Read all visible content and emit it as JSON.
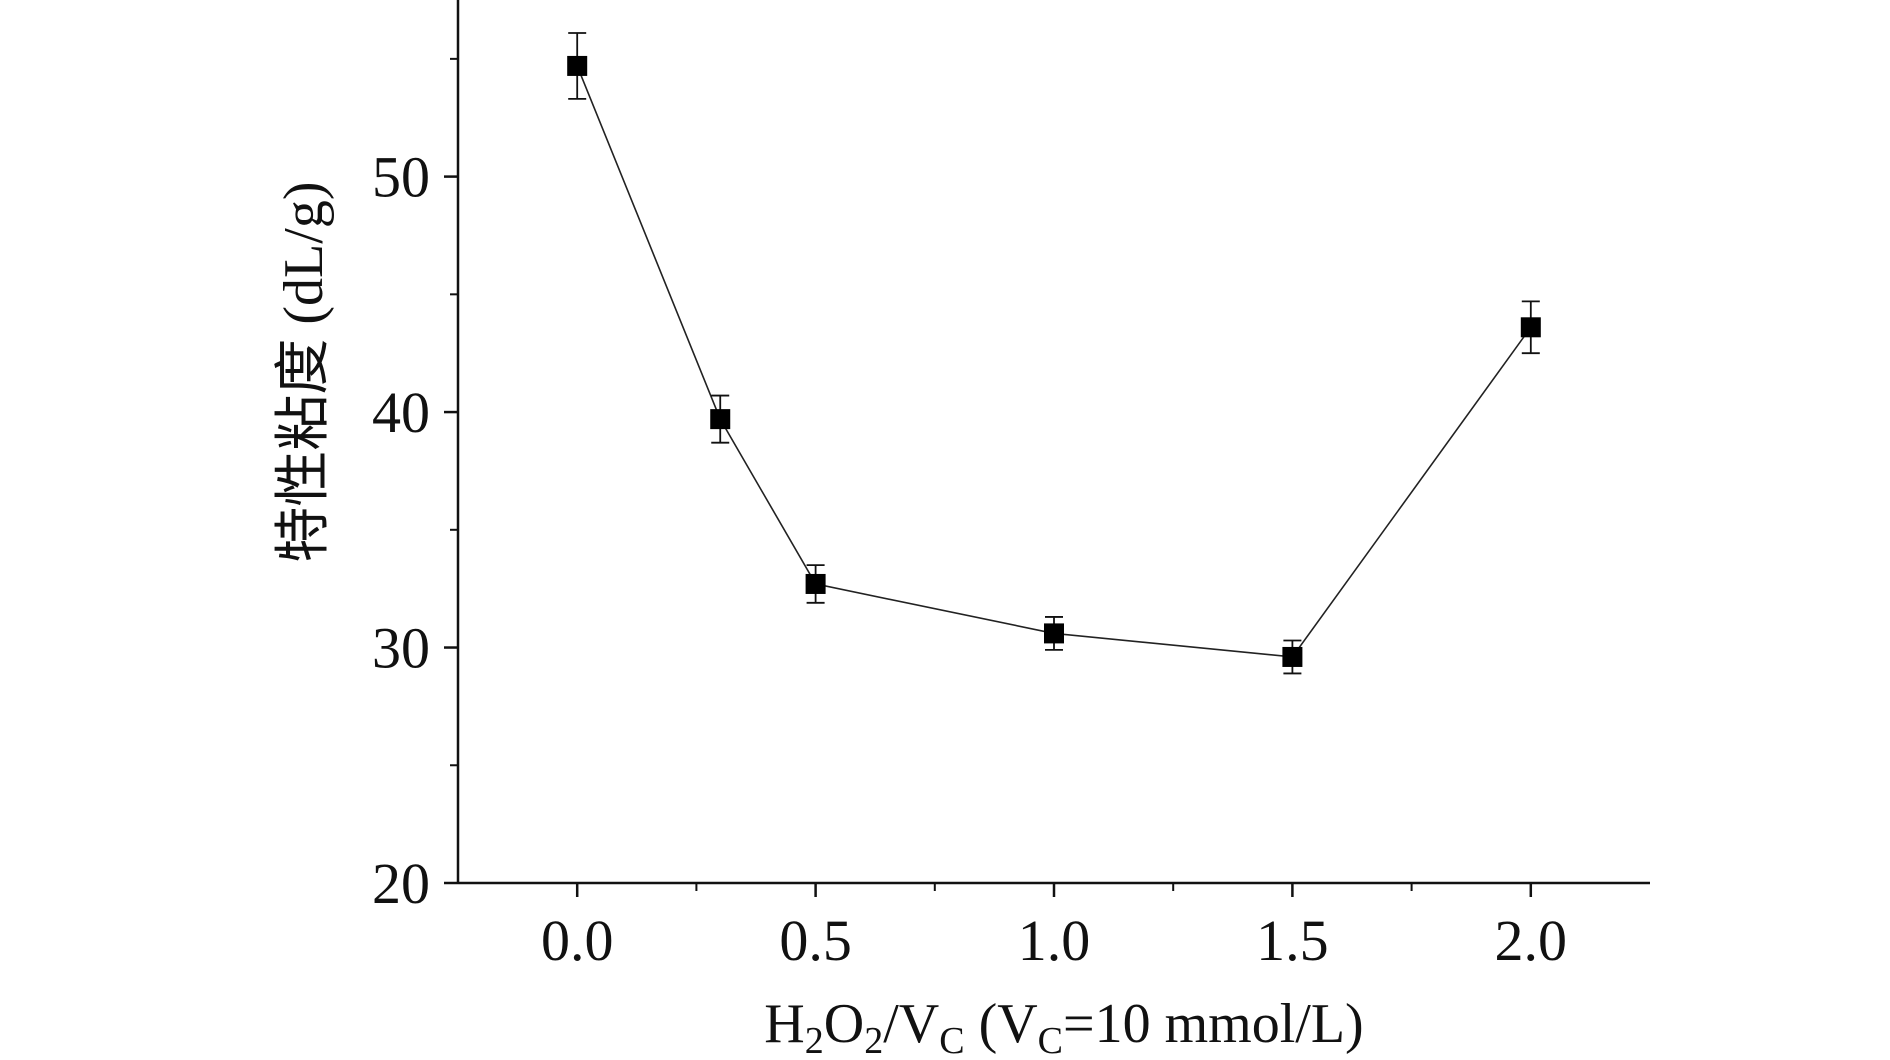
{
  "chart_data": {
    "type": "scatter",
    "title": "",
    "xlabel": {
      "text": "H2O2/VC (VC=10 mmol/L)",
      "parts": [
        {
          "t": "H",
          "sub": false
        },
        {
          "t": "2",
          "sub": true
        },
        {
          "t": "O",
          "sub": false
        },
        {
          "t": "2",
          "sub": true
        },
        {
          "t": "/V",
          "sub": false
        },
        {
          "t": "C",
          "sub": true
        },
        {
          "t": " (V",
          "sub": false
        },
        {
          "t": "C",
          "sub": true
        },
        {
          "t": "=10 mmol/L)",
          "sub": false
        }
      ]
    },
    "ylabel": "特性粘度 (dL/g)",
    "xlim": [
      -0.25,
      2.25
    ],
    "ylim": [
      20,
      57.5
    ],
    "x_ticks": [
      "0.0",
      "0.5",
      "1.0",
      "1.5",
      "2.0"
    ],
    "x_tick_values": [
      0.0,
      0.5,
      1.0,
      1.5,
      2.0
    ],
    "x_minor_ticks": [
      0.25,
      0.75,
      1.25,
      1.75
    ],
    "y_ticks": [
      "20",
      "30",
      "40",
      "50"
    ],
    "y_tick_values": [
      20,
      30,
      40,
      50
    ],
    "y_minor_ticks": [
      25,
      35,
      45,
      55
    ],
    "grid": false,
    "legend": "none",
    "marker": "filled-square",
    "color": "#000000",
    "series": [
      {
        "x": [
          0.0,
          0.3,
          0.5,
          1.0,
          1.5,
          2.0
        ],
        "y": [
          54.7,
          39.7,
          32.7,
          30.6,
          29.6,
          43.6
        ],
        "error": [
          1.4,
          1.0,
          0.8,
          0.7,
          0.7,
          1.1
        ]
      }
    ]
  }
}
